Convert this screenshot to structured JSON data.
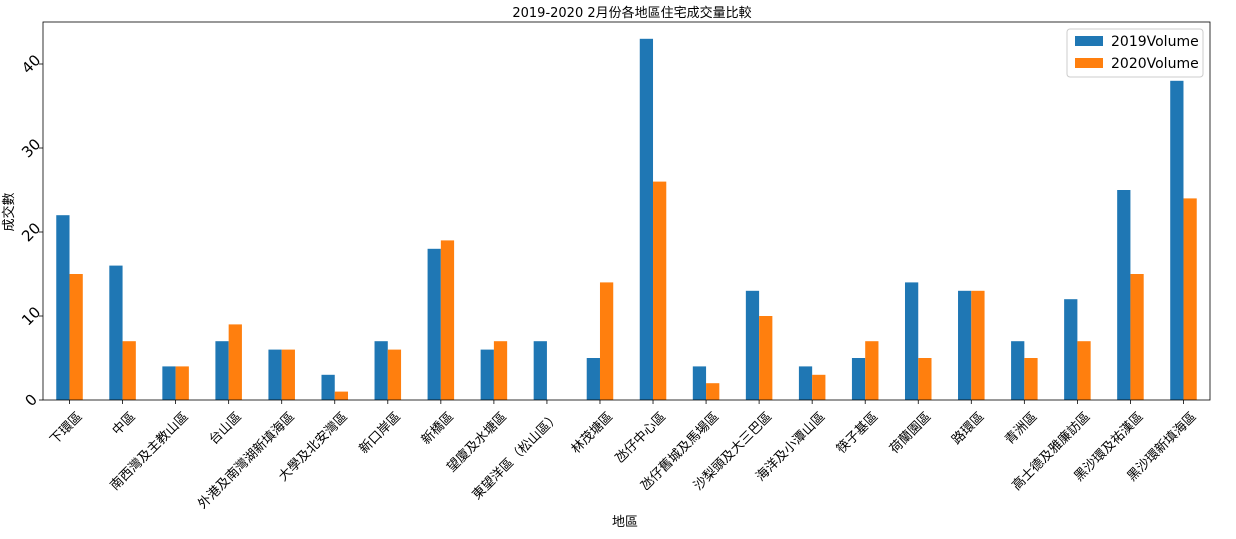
{
  "chart_data": {
    "type": "bar",
    "title": "2019-2020 2月份各地區住宅成交量比較",
    "xlabel": "地區",
    "ylabel": "成交數",
    "ylim": [
      0,
      45
    ],
    "yticks": [
      0,
      10,
      20,
      30,
      40
    ],
    "grid": false,
    "legend_position": "top-right",
    "categories": [
      "下環區",
      "中區",
      "南西灣及主教山區",
      "台山區",
      "外港及南灣湖新填海區",
      "大學及北安灣區",
      "新口岸區",
      "新橋區",
      "望廈及水塘區",
      "東望洋區（松山區）",
      "林茂塘區",
      "氹仔中心區",
      "氹仔舊城及馬場區",
      "沙梨頭及大三巴區",
      "海洋及小潭山區",
      "筷子基區",
      "荷蘭園區",
      "路環區",
      "青洲區",
      "高士德及雅廉訪區",
      "黑沙環及祐漢區",
      "黑沙環新填海區"
    ],
    "series": [
      {
        "name": "2019Volume",
        "color": "#1f77b4",
        "values": [
          22,
          16,
          4,
          7,
          6,
          3,
          7,
          18,
          6,
          7,
          5,
          43,
          4,
          13,
          4,
          5,
          14,
          13,
          7,
          12,
          25,
          38
        ]
      },
      {
        "name": "2020Volume",
        "color": "#ff7f0e",
        "values": [
          15,
          7,
          4,
          9,
          6,
          1,
          6,
          19,
          7,
          0,
          14,
          26,
          2,
          10,
          3,
          7,
          5,
          13,
          5,
          7,
          15,
          24
        ]
      }
    ]
  }
}
